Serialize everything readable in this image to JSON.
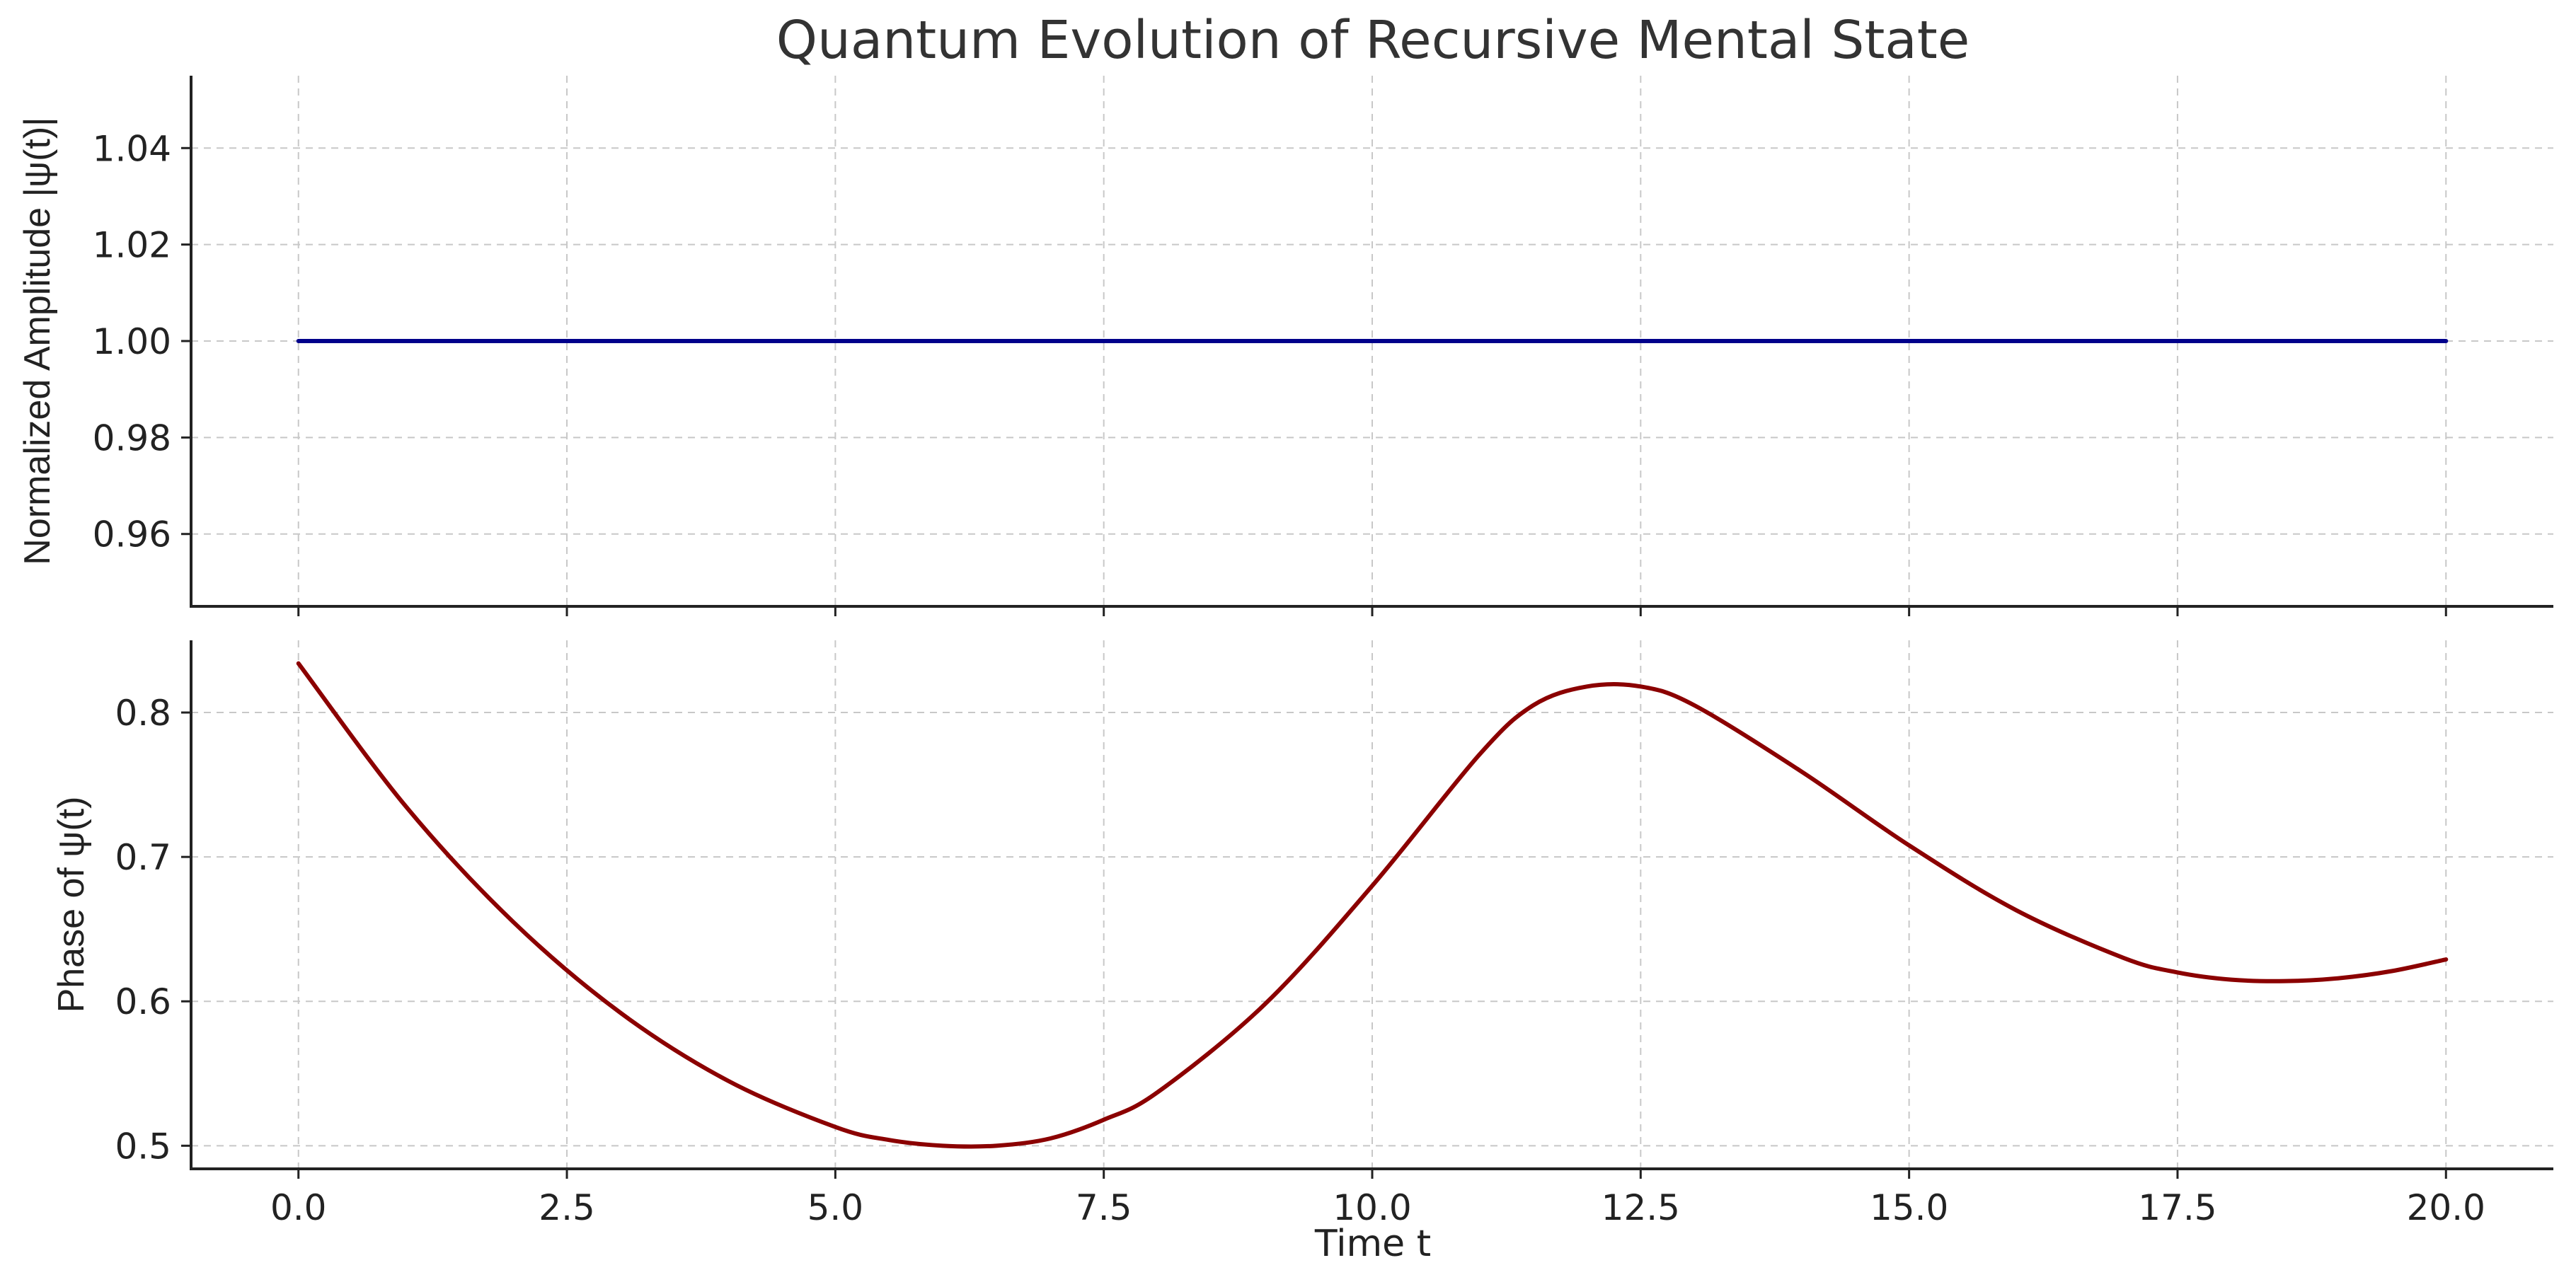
{
  "figure": {
    "title": "Quantum Evolution of Recursive Mental State",
    "xlabel": "Time t"
  },
  "chart_data": [
    {
      "type": "line",
      "title": "",
      "xlabel": "",
      "ylabel": "Normalized Amplitude |ψ(t)|",
      "xlim": [
        -1.0,
        21.0
      ],
      "ylim": [
        0.945,
        1.055
      ],
      "xticks": [
        0.0,
        2.5,
        5.0,
        7.5,
        10.0,
        12.5,
        15.0,
        17.5,
        20.0
      ],
      "xtick_labels": [],
      "yticks": [
        0.96,
        0.98,
        1.0,
        1.02,
        1.04
      ],
      "ytick_labels": [
        "0.96",
        "0.98",
        "1.00",
        "1.02",
        "1.04"
      ],
      "grid": true,
      "series": [
        {
          "color": "#00008b",
          "x": [
            0,
            20
          ],
          "y": [
            1.0,
            1.0
          ]
        }
      ]
    },
    {
      "type": "line",
      "title": "",
      "xlabel": "Time t",
      "ylabel": "Phase of ψ(t)",
      "xlim": [
        -1.0,
        21.0
      ],
      "ylim": [
        0.484,
        0.85
      ],
      "xticks": [
        0.0,
        2.5,
        5.0,
        7.5,
        10.0,
        12.5,
        15.0,
        17.5,
        20.0
      ],
      "xtick_labels": [
        "0.0",
        "2.5",
        "5.0",
        "7.5",
        "10.0",
        "12.5",
        "15.0",
        "17.5",
        "20.0"
      ],
      "yticks": [
        0.5,
        0.6,
        0.7,
        0.8
      ],
      "ytick_labels": [
        "0.5",
        "0.6",
        "0.7",
        "0.8"
      ],
      "grid": true,
      "series": [
        {
          "color": "#8b0000",
          "x": [
            0,
            1,
            2,
            3,
            4,
            5,
            5.5,
            6,
            6.5,
            7,
            7.5,
            8,
            9,
            10,
            11,
            11.5,
            12,
            12.5,
            13,
            14,
            15,
            16,
            17,
            17.5,
            18,
            18.5,
            19,
            19.5,
            20
          ],
          "y": [
            0.834,
            0.735,
            0.655,
            0.592,
            0.545,
            0.513,
            0.504,
            0.5,
            0.5,
            0.505,
            0.518,
            0.537,
            0.598,
            0.68,
            0.771,
            0.805,
            0.818,
            0.818,
            0.805,
            0.759,
            0.708,
            0.663,
            0.63,
            0.62,
            0.615,
            0.614,
            0.616,
            0.621,
            0.629
          ]
        }
      ]
    }
  ]
}
